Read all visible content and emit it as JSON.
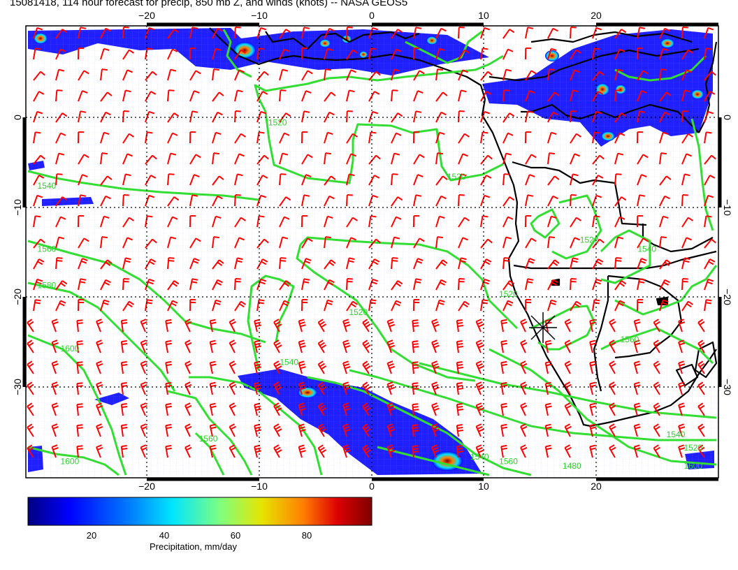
{
  "title": "15081418, 114 hour forecast for precip, 850 mb Z, and winds (knots) -- NASA GEOS5",
  "map": {
    "lon_ticks": [
      "−20",
      "−10",
      "0",
      "10",
      "20"
    ],
    "lat_ticks": [
      "0",
      "−10",
      "−20",
      "−30"
    ],
    "lon_range": [
      -30,
      30
    ],
    "lat_range": [
      -40,
      10
    ],
    "colors": {
      "wind_barb": "#ff0000",
      "contour": "#33dd33",
      "coast": "#000000"
    },
    "contour_labels": [
      {
        "text": "1520",
        "lon": -9,
        "lat": -1
      },
      {
        "text": "1520",
        "lon": 6.5,
        "lat": -7
      },
      {
        "text": "1540",
        "lon": -29,
        "lat": -8
      },
      {
        "text": "1560",
        "lon": -29,
        "lat": -15
      },
      {
        "text": "1580",
        "lon": -29,
        "lat": -19
      },
      {
        "text": "1600",
        "lon": -27,
        "lat": -26
      },
      {
        "text": "1520",
        "lon": -2,
        "lat": -22
      },
      {
        "text": "1540",
        "lon": -8,
        "lat": -27.5
      },
      {
        "text": "1520",
        "lon": 11,
        "lat": -20
      },
      {
        "text": "1520",
        "lon": 18,
        "lat": -14
      },
      {
        "text": "1540",
        "lon": 23,
        "lat": -15
      },
      {
        "text": "1560",
        "lon": 21.5,
        "lat": -25
      },
      {
        "text": "1560",
        "lon": -15,
        "lat": -36
      },
      {
        "text": "1600",
        "lon": -27,
        "lat": -38.5
      },
      {
        "text": "1540",
        "lon": 8.5,
        "lat": -38
      },
      {
        "text": "1560",
        "lon": 11,
        "lat": -38.5
      },
      {
        "text": "1480",
        "lon": 16.5,
        "lat": -39
      },
      {
        "text": "1540",
        "lon": 25.5,
        "lat": -35.5
      },
      {
        "text": "1520",
        "lon": 27,
        "lat": -37
      },
      {
        "text": "1600",
        "lon": 27,
        "lat": -39
      }
    ]
  },
  "colorbar": {
    "label": "Precipitation, mm/day",
    "ticks": [
      "20",
      "40",
      "60",
      "80"
    ],
    "colors": [
      "#00007f",
      "#0000ff",
      "#007fff",
      "#00e5ff",
      "#7fff7f",
      "#e5e500",
      "#ff7f00",
      "#dd0000",
      "#7f0000"
    ]
  }
}
